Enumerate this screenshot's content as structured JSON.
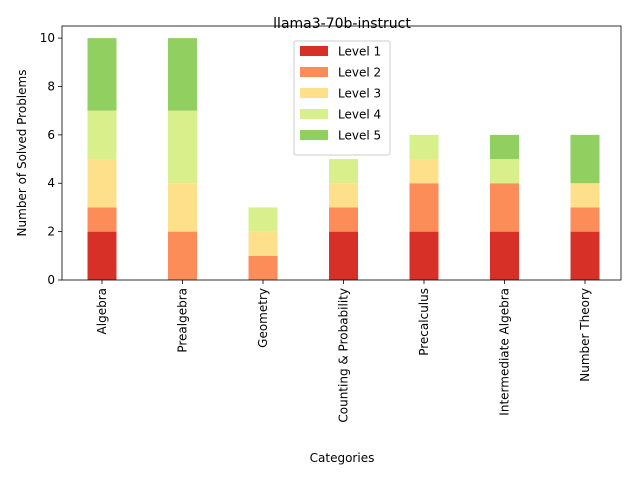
{
  "chart_data": {
    "type": "bar",
    "stacked": true,
    "title": "llama3-70b-instruct",
    "xlabel": "Categories",
    "ylabel": "Number of Solved Problems",
    "ylim": [
      0,
      10.5
    ],
    "yticks": [
      0,
      2,
      4,
      6,
      8,
      10
    ],
    "grid": false,
    "legend_position": "top-center",
    "categories": [
      "Algebra",
      "Prealgebra",
      "Geometry",
      "Counting & Probability",
      "Precalculus",
      "Intermediate Algebra",
      "Number Theory"
    ],
    "series": [
      {
        "name": "Level 1",
        "color": "#d73027",
        "values": [
          2,
          0,
          0,
          2,
          2,
          2,
          2
        ]
      },
      {
        "name": "Level 2",
        "color": "#fc8d59",
        "values": [
          1,
          2,
          1,
          1,
          2,
          2,
          1
        ]
      },
      {
        "name": "Level 3",
        "color": "#fee08b",
        "values": [
          2,
          2,
          1,
          1,
          1,
          0,
          1
        ]
      },
      {
        "name": "Level 4",
        "color": "#d9ef8b",
        "values": [
          2,
          3,
          1,
          1,
          1,
          1,
          0
        ]
      },
      {
        "name": "Level 5",
        "color": "#91cf60",
        "values": [
          3,
          3,
          0,
          0,
          0,
          1,
          2
        ]
      }
    ]
  }
}
